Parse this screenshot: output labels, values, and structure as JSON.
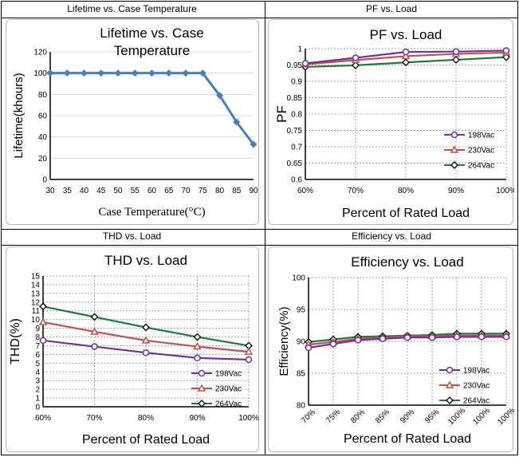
{
  "captions": {
    "lifetime": "Lifetime vs. Case Temperature",
    "pf": "PF vs. Load",
    "thd": "THD vs. Load",
    "efficiency": "Efficiency vs. Load"
  },
  "colors": {
    "lifetime": "#4a7ebb",
    "v198": "#7030a0",
    "v230": "#c0504d",
    "v264": "#1e7a3e"
  },
  "chart_data": [
    {
      "id": "lifetime",
      "type": "line",
      "title": "Lifetime vs. Case Temperature",
      "title_lines": [
        "Lifetime vs. Case",
        "Temperature"
      ],
      "xlabel": "Case Temperature(°C)",
      "ylabel": "Lifetime(khours)",
      "categories": [
        "30",
        "35",
        "40",
        "45",
        "50",
        "55",
        "60",
        "65",
        "70",
        "75",
        "80",
        "85",
        "90"
      ],
      "series": [
        {
          "name": "Lifetime",
          "values": [
            100,
            100,
            100,
            100,
            100,
            100,
            100,
            100,
            100,
            100,
            79,
            54,
            33
          ]
        }
      ],
      "ylim": [
        0,
        120
      ],
      "yticks": [
        "0",
        "20",
        "40",
        "60",
        "80",
        "100",
        "120"
      ],
      "grid": "horizontal"
    },
    {
      "id": "pf",
      "type": "line",
      "title": "PF vs. Load",
      "xlabel": "Percent of Rated Load",
      "ylabel": "PF",
      "categories": [
        "60%",
        "70%",
        "80%",
        "90%",
        "100%"
      ],
      "series": [
        {
          "name": "198Vac",
          "values": [
            0.955,
            0.972,
            0.99,
            0.991,
            0.994
          ]
        },
        {
          "name": "230Vac",
          "values": [
            0.952,
            0.965,
            0.977,
            0.984,
            0.988
          ]
        },
        {
          "name": "264Vac",
          "values": [
            0.944,
            0.949,
            0.958,
            0.966,
            0.974
          ]
        }
      ],
      "ylim": [
        0.6,
        1.0
      ],
      "yticks": [
        "0.6",
        "0.65",
        "0.7",
        "0.75",
        "0.8",
        "0.85",
        "0.9",
        "0.95",
        "1"
      ],
      "legend": "right"
    },
    {
      "id": "thd",
      "type": "line",
      "title": "THD vs. Load",
      "xlabel": "Percent of Rated Load",
      "ylabel": "THD(%)",
      "categories": [
        "60%",
        "70%",
        "80%",
        "90%",
        "100%"
      ],
      "series": [
        {
          "name": "198Vac",
          "values": [
            7.6,
            6.9,
            6.2,
            5.6,
            5.4
          ]
        },
        {
          "name": "230Vac",
          "values": [
            9.7,
            8.6,
            7.6,
            6.9,
            6.3
          ]
        },
        {
          "name": "264Vac",
          "values": [
            11.5,
            10.3,
            9.1,
            8.0,
            7.0
          ]
        }
      ],
      "ylim": [
        0,
        15
      ],
      "yticks": [
        "0",
        "1",
        "2",
        "3",
        "4",
        "5",
        "6",
        "7",
        "8",
        "9",
        "10",
        "11",
        "12",
        "13",
        "14",
        "15"
      ],
      "legend": "bottom-right"
    },
    {
      "id": "efficiency",
      "type": "line",
      "title": "Efficiency vs. Load",
      "xlabel": "Percent of Rated Load",
      "ylabel": "Efficiency(%)",
      "categories": [
        "70%",
        "75%",
        "80%",
        "85%",
        "90%",
        "95%",
        "100%",
        "100%",
        "100%"
      ],
      "series": [
        {
          "name": "198Vac",
          "values": [
            89.0,
            89.6,
            90.2,
            90.4,
            90.6,
            90.6,
            90.7,
            90.7,
            90.7
          ]
        },
        {
          "name": "230Vac",
          "values": [
            89.5,
            89.9,
            90.4,
            90.6,
            90.8,
            90.8,
            90.9,
            90.9,
            90.9
          ]
        },
        {
          "name": "264Vac",
          "values": [
            89.9,
            90.3,
            90.7,
            90.8,
            90.9,
            91.0,
            91.2,
            91.2,
            91.2
          ]
        }
      ],
      "ylim": [
        80,
        100
      ],
      "yticks": [
        "80",
        "85",
        "90",
        "95",
        "100"
      ],
      "legend": "bottom-right"
    }
  ]
}
